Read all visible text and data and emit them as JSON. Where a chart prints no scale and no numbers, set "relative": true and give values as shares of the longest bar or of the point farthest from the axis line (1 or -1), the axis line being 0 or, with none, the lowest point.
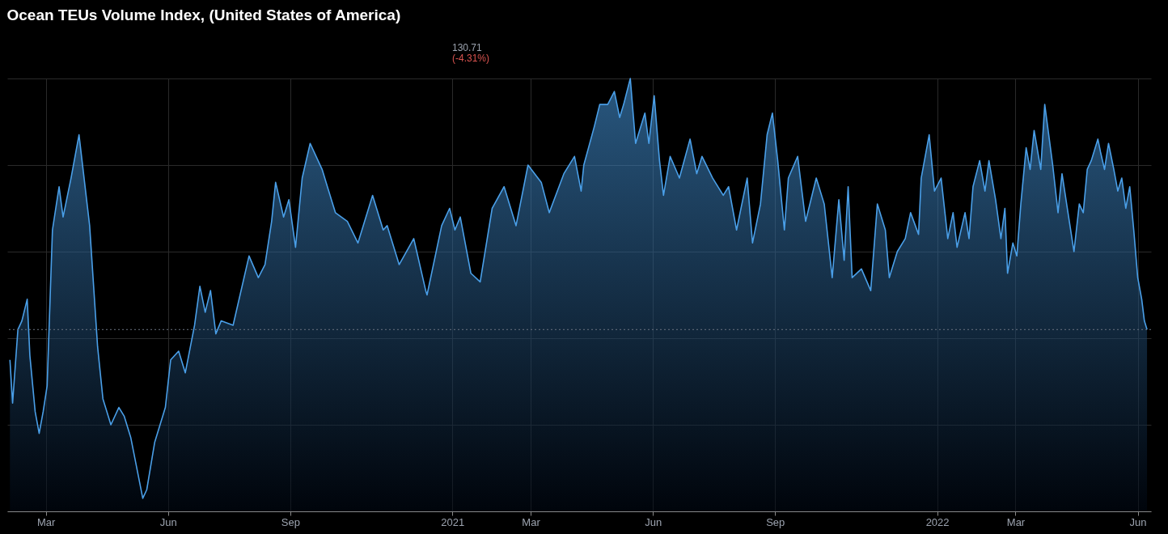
{
  "chart_data": {
    "type": "area",
    "title": "Ocean TEUs Volume Index, (United States of America)",
    "annotations": [
      "130.71",
      "(-4.31%)"
    ],
    "relative": true,
    "grid": true,
    "xlim": [
      "2020-02-01",
      "2022-06-11"
    ],
    "xticks": [
      {
        "value": "2020-03-01",
        "label": "Mar"
      },
      {
        "value": "2020-06-01",
        "label": "Jun"
      },
      {
        "value": "2020-09-01",
        "label": "Sep"
      },
      {
        "value": "2021-01-01",
        "label": "2021"
      },
      {
        "value": "2021-03-01",
        "label": "Mar"
      },
      {
        "value": "2021-06-01",
        "label": "Jun"
      },
      {
        "value": "2021-09-01",
        "label": "Sep"
      },
      {
        "value": "2022-01-01",
        "label": "2022"
      },
      {
        "value": "2022-03-01",
        "label": "Mar"
      },
      {
        "value": "2022-06-01",
        "label": "Jun"
      }
    ],
    "ref_lines": [
      {
        "axis": "y",
        "value": 0.42,
        "label": null,
        "color": "#6b7280",
        "line_style": "dotted"
      }
    ],
    "x": [
      "2020-02-03",
      "2020-02-05",
      "2020-02-09",
      "2020-02-12",
      "2020-02-16",
      "2020-02-18",
      "2020-02-22",
      "2020-02-25",
      "2020-02-28",
      "2020-03-02",
      "2020-03-06",
      "2020-03-11",
      "2020-03-14",
      "2020-03-20",
      "2020-03-26",
      "2020-04-03",
      "2020-04-09",
      "2020-04-13",
      "2020-04-19",
      "2020-04-25",
      "2020-04-29",
      "2020-05-04",
      "2020-05-13",
      "2020-05-16",
      "2020-05-22",
      "2020-05-30",
      "2020-06-03",
      "2020-06-09",
      "2020-06-14",
      "2020-06-21",
      "2020-06-25",
      "2020-06-29",
      "2020-07-03",
      "2020-07-07",
      "2020-07-11",
      "2020-07-20",
      "2020-07-23",
      "2020-08-01",
      "2020-08-08",
      "2020-08-13",
      "2020-08-18",
      "2020-08-21",
      "2020-08-27",
      "2020-08-31",
      "2020-09-05",
      "2020-09-10",
      "2020-09-16",
      "2020-09-25",
      "2020-09-28",
      "2020-10-05",
      "2020-10-14",
      "2020-10-22",
      "2020-11-02",
      "2020-11-10",
      "2020-11-13",
      "2020-11-22",
      "2020-12-03",
      "2020-12-12",
      "2020-12-13",
      "2020-12-24",
      "2020-12-30",
      "2021-01-03",
      "2021-01-07",
      "2021-01-15",
      "2021-01-22",
      "2021-01-31",
      "2021-02-09",
      "2021-02-18",
      "2021-02-27",
      "2021-03-09",
      "2021-03-15",
      "2021-03-26",
      "2021-04-03",
      "2021-04-08",
      "2021-04-10",
      "2021-04-18",
      "2021-04-22",
      "2021-04-28",
      "2021-05-03",
      "2021-05-07",
      "2021-05-10",
      "2021-05-15",
      "2021-05-19",
      "2021-05-26",
      "2021-05-29",
      "2021-06-02",
      "2021-06-06",
      "2021-06-09",
      "2021-06-14",
      "2021-06-21",
      "2021-06-29",
      "2021-07-04",
      "2021-07-08",
      "2021-07-16",
      "2021-07-24",
      "2021-07-28",
      "2021-08-03",
      "2021-08-11",
      "2021-08-15",
      "2021-08-21",
      "2021-08-26",
      "2021-08-30",
      "2021-09-03",
      "2021-09-08",
      "2021-09-11",
      "2021-09-18",
      "2021-09-24",
      "2021-10-02",
      "2021-10-08",
      "2021-10-14",
      "2021-10-19",
      "2021-10-23",
      "2021-10-26",
      "2021-10-29",
      "2021-11-05",
      "2021-11-12",
      "2021-11-17",
      "2021-11-23",
      "2021-11-26",
      "2021-12-02",
      "2021-12-08",
      "2021-12-12",
      "2021-12-18",
      "2021-12-20",
      "2021-12-26",
      "2021-12-30",
      "2022-01-04",
      "2022-01-09",
      "2022-01-13",
      "2022-01-16",
      "2022-01-22",
      "2022-01-25",
      "2022-01-28",
      "2022-02-02",
      "2022-02-06",
      "2022-02-09",
      "2022-02-14",
      "2022-02-18",
      "2022-02-21",
      "2022-02-23",
      "2022-02-27",
      "2022-03-02",
      "2022-03-05",
      "2022-03-09",
      "2022-03-12",
      "2022-03-15",
      "2022-03-20",
      "2022-03-23",
      "2022-03-26",
      "2022-03-29",
      "2022-04-02",
      "2022-04-05",
      "2022-04-11",
      "2022-04-14",
      "2022-04-18",
      "2022-04-21",
      "2022-04-24",
      "2022-04-27",
      "2022-05-02",
      "2022-05-04",
      "2022-05-07",
      "2022-05-10",
      "2022-05-14",
      "2022-05-17",
      "2022-05-20",
      "2022-05-23",
      "2022-05-26",
      "2022-05-29",
      "2022-06-01",
      "2022-06-04",
      "2022-06-06",
      "2022-06-08"
    ],
    "series": [
      {
        "color": "#4a9fe8",
        "values": [
          0.35,
          0.25,
          0.42,
          0.44,
          0.49,
          0.36,
          0.23,
          0.18,
          0.23,
          0.29,
          0.65,
          0.75,
          0.68,
          0.77,
          0.87,
          0.66,
          0.38,
          0.26,
          0.2,
          0.24,
          0.22,
          0.17,
          0.03,
          0.05,
          0.16,
          0.24,
          0.35,
          0.37,
          0.32,
          0.43,
          0.52,
          0.46,
          0.51,
          0.41,
          0.44,
          0.43,
          0.47,
          0.59,
          0.54,
          0.57,
          0.67,
          0.76,
          0.68,
          0.72,
          0.61,
          0.77,
          0.85,
          0.79,
          0.76,
          0.69,
          0.67,
          0.62,
          0.73,
          0.65,
          0.66,
          0.57,
          0.63,
          0.51,
          0.5,
          0.66,
          0.7,
          0.65,
          0.68,
          0.55,
          0.53,
          0.7,
          0.75,
          0.66,
          0.8,
          0.76,
          0.69,
          0.78,
          0.82,
          0.74,
          0.8,
          0.89,
          0.94,
          0.94,
          0.97,
          0.91,
          0.94,
          1.0,
          0.85,
          0.92,
          0.85,
          0.96,
          0.81,
          0.73,
          0.82,
          0.77,
          0.86,
          0.78,
          0.82,
          0.77,
          0.73,
          0.75,
          0.65,
          0.77,
          0.62,
          0.71,
          0.87,
          0.92,
          0.81,
          0.65,
          0.77,
          0.82,
          0.67,
          0.77,
          0.71,
          0.54,
          0.72,
          0.58,
          0.75,
          0.54,
          0.56,
          0.51,
          0.71,
          0.65,
          0.54,
          0.6,
          0.63,
          0.69,
          0.64,
          0.77,
          0.87,
          0.74,
          0.77,
          0.63,
          0.69,
          0.61,
          0.69,
          0.63,
          0.75,
          0.81,
          0.74,
          0.81,
          0.72,
          0.63,
          0.7,
          0.55,
          0.62,
          0.59,
          0.71,
          0.84,
          0.79,
          0.88,
          0.79,
          0.94,
          0.87,
          0.8,
          0.69,
          0.78,
          0.66,
          0.6,
          0.71,
          0.69,
          0.79,
          0.81,
          0.86,
          0.83,
          0.79,
          0.85,
          0.79,
          0.74,
          0.77,
          0.7,
          0.75,
          0.65,
          0.54,
          0.49,
          0.44,
          0.42
        ]
      }
    ]
  }
}
